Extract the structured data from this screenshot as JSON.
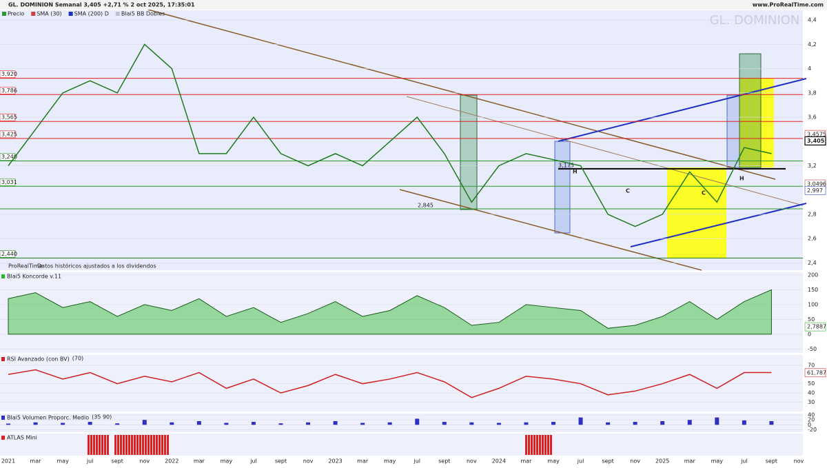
{
  "header": {
    "title": "GL. DOMINION Semanal 3,405 +2,71 % 2 oct 2025, 17:35:01",
    "site": "www.ProRealTime.com",
    "watermark": "GL. DOMINION",
    "legend": [
      "Precio",
      "SMA (30)",
      "SMA (200) D",
      "Blai5 BB Dobles"
    ],
    "source": "ProRealTime",
    "note": "Datos históricos ajustados a los dividendos"
  },
  "chart_data": [
    {
      "type": "line",
      "name": "Precio",
      "color": "#1f7a1f",
      "categories": [
        "2021",
        "mar",
        "may",
        "jul",
        "sept",
        "nov",
        "2022",
        "mar",
        "may",
        "jul",
        "sept",
        "nov",
        "2023",
        "mar",
        "may",
        "jul",
        "sept",
        "nov",
        "2024",
        "mar",
        "may",
        "jul",
        "sept",
        "nov",
        "2025",
        "mar",
        "may",
        "jul",
        "sept",
        "nov"
      ],
      "values": [
        3.2,
        3.5,
        3.8,
        3.9,
        3.8,
        4.2,
        4.0,
        3.3,
        3.3,
        3.6,
        3.3,
        3.2,
        3.3,
        3.2,
        3.4,
        3.6,
        3.3,
        2.9,
        3.2,
        3.3,
        3.25,
        3.2,
        2.8,
        2.7,
        2.8,
        3.15,
        2.9,
        3.35,
        3.3,
        null
      ],
      "ylim": [
        2.34,
        4.48
      ],
      "yticks": [
        {
          "value": 2.4,
          "label": "2,4"
        },
        {
          "value": 2.6,
          "label": "2,6"
        },
        {
          "value": 2.8,
          "label": "2,8"
        },
        {
          "value": 3.2,
          "label": "3,2"
        },
        {
          "value": 3.6,
          "label": "3,6"
        },
        {
          "value": 3.8,
          "label": "3,8"
        },
        4,
        {
          "value": 4.2,
          "label": "4,2"
        },
        {
          "value": 4.4,
          "label": "4,4"
        }
      ],
      "levels": [
        {
          "value": 3.92,
          "label": "3,920",
          "color": "#e02020"
        },
        {
          "value": 3.786,
          "label": "3,786",
          "color": "#e02020"
        },
        {
          "value": 3.565,
          "label": "3,565",
          "color": "#e02020"
        },
        {
          "value": 3.425,
          "label": "3,425",
          "color": "#e02020"
        },
        {
          "value": 3.24,
          "label": "3,240",
          "color": "#2a9a2a"
        },
        {
          "value": 3.031,
          "label": "3,031",
          "color": "#2a9a2a"
        },
        {
          "value": 2.845,
          "label": "2,845",
          "color": "#2a9a2a"
        },
        {
          "value": 2.44,
          "label": "2,440",
          "color": "#1a7a1a"
        },
        {
          "value": 3.175,
          "label": "3,175",
          "color": "#000000"
        }
      ],
      "right_labels": [
        {
          "value": 3.4575,
          "label": "3,4575",
          "color": "#e02020"
        },
        {
          "value": 3.405,
          "label": "3,405",
          "color": "#000000"
        },
        {
          "value": 3.0496,
          "label": "3,0496",
          "color": "#c04040"
        },
        {
          "value": 2.997,
          "label": "2,997",
          "color": "#2040c0"
        }
      ],
      "annotations": [
        "H",
        "C",
        "C",
        "H"
      ]
    },
    {
      "type": "area",
      "title": "Blai5 Koncorde v.11",
      "color": "#2ab82a",
      "values": [
        120,
        140,
        90,
        110,
        60,
        100,
        80,
        120,
        60,
        90,
        40,
        70,
        110,
        60,
        80,
        130,
        90,
        30,
        40,
        100,
        90,
        80,
        20,
        30,
        60,
        110,
        50,
        110,
        150,
        null
      ],
      "ylim": [
        -63,
        209
      ],
      "yticks": [
        200,
        150,
        100,
        50,
        0,
        -50
      ],
      "value_labels": [
        {
          "value": 2.7887,
          "label": "2,7887"
        }
      ]
    },
    {
      "type": "line",
      "title": "RSI Avanzado (con BV)",
      "param": "(70)",
      "color": "#d02020",
      "values": [
        60,
        65,
        55,
        62,
        50,
        58,
        52,
        62,
        45,
        55,
        40,
        48,
        60,
        50,
        55,
        62,
        52,
        35,
        45,
        58,
        55,
        50,
        38,
        42,
        50,
        60,
        45,
        62,
        62,
        null
      ],
      "ylim": [
        20,
        81
      ],
      "yticks": [
        70,
        50,
        40,
        30
      ],
      "value_labels": [
        {
          "value": 61.787,
          "label": "61,787"
        }
      ]
    },
    {
      "type": "bar",
      "title": "Blai5 Volumen Proporc. Medio",
      "param": "(35 90)",
      "color": "#3030c0",
      "values": [
        5,
        10,
        8,
        12,
        6,
        20,
        10,
        15,
        8,
        12,
        6,
        10,
        15,
        8,
        10,
        25,
        12,
        10,
        8,
        10,
        12,
        30,
        10,
        12,
        15,
        20,
        30,
        18,
        15,
        null
      ],
      "ylim": [
        -30,
        46
      ],
      "yticks": [
        40,
        20,
        0,
        -20
      ]
    },
    {
      "type": "signal",
      "title": "ATLAS Mini"
    }
  ]
}
